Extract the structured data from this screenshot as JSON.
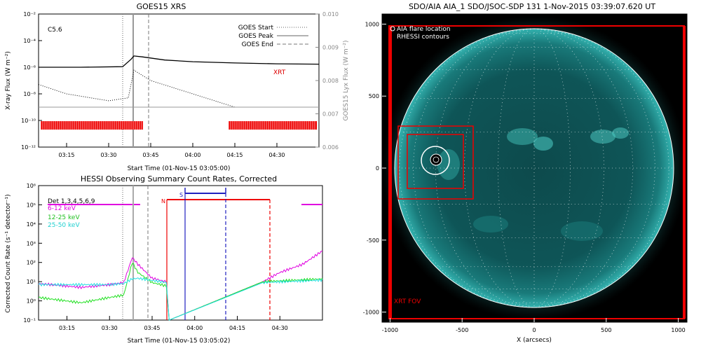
{
  "goes": {
    "title": "GOES15 XRS",
    "ylabel": "X-ray Flux (W m⁻²)",
    "ylabel_right": "GOES15 Lyx Flux (W m⁻²)",
    "xlabel": "Start Time (01-Nov-15 03:05:00)",
    "class_label": "C5.6",
    "instrument_label": "XRT",
    "legend": [
      "GOES Start",
      "GOES Peak",
      "GOES End"
    ],
    "yticks": [
      "10⁻²",
      "10⁻⁴",
      "10⁻⁶",
      "10⁻⁸",
      "10⁻¹⁰",
      "10⁻¹²"
    ],
    "yticks_right": [
      "0.010",
      "0.009",
      "0.008",
      "0.007",
      "0.006"
    ],
    "xticks": [
      "03:15",
      "03:30",
      "03:45",
      "04:00",
      "04:15",
      "04:30"
    ]
  },
  "hessi": {
    "title": "HESSI Observing Summary Count Rates, Corrected",
    "ylabel": "Corrected Count Rate (s⁻¹ detector⁻¹)",
    "xlabel": "Start Time (01-Nov-15 03:05:02)",
    "legend": [
      {
        "label": "Det 1,3,4,5,6,9",
        "color": "#000000"
      },
      {
        "label": "6-12 keV",
        "color": "#e000e0"
      },
      {
        "label": "12-25 keV",
        "color": "#20e020"
      },
      {
        "label": "25-50 keV",
        "color": "#20e0e0"
      }
    ],
    "flag_N": "N",
    "flag_S": "S",
    "yticks": [
      "10⁶",
      "10⁵",
      "10⁴",
      "10³",
      "10²",
      "10¹",
      "10⁰",
      "10⁻¹"
    ],
    "xticks": [
      "03:15",
      "03:30",
      "03:45",
      "04:00",
      "04:15",
      "04:30"
    ]
  },
  "aia": {
    "title": "SDO/AIA AIA_1 SDO/JSOC-SDP 131  1-Nov-2015 03:39:07.620 UT",
    "legend": [
      "AIA flare location",
      "RHESSI contours"
    ],
    "fov_label": "XRT FOV",
    "xlabel": "X (arcsecs)",
    "xticks": [
      "-1000",
      "-500",
      "0",
      "500",
      "1000"
    ],
    "yticks": [
      "1000",
      "500",
      "0",
      "-500",
      "-1000"
    ]
  },
  "chart_data": [
    {
      "type": "line",
      "title": "GOES15 XRS",
      "xlabel": "Start Time (01-Nov-15 03:05:00)",
      "ylabel": "X-ray Flux (W m⁻²)",
      "yscale": "log",
      "ylim": [
        1e-12,
        0.01
      ],
      "xlim": [
        "03:05",
        "04:45"
      ],
      "series": [
        {
          "x": [
            "03:05",
            "03:20",
            "03:35",
            "03:38",
            "03:39",
            "03:42",
            "03:50",
            "04:00",
            "04:15",
            "04:30",
            "04:45"
          ],
          "values": [
            1e-06,
            1e-06,
            1.1e-06,
            4e-06,
            7e-06,
            6e-06,
            3.5e-06,
            2.6e-06,
            2.1e-06,
            1.8e-06,
            1.7e-06
          ]
        },
        {
          "x": [
            "03:05",
            "03:15",
            "03:30",
            "03:37",
            "03:39",
            "03:45",
            "04:00",
            "04:15",
            "04:30",
            "04:45"
          ],
          "values": [
            5e-08,
            1e-08,
            3e-09,
            5e-09,
            6e-07,
            1e-07,
            1e-08,
            1e-09,
            1e-09,
            1e-09
          ]
        },
        {
          "x": [
            "03:05",
            "04:45"
          ],
          "values": [
            1e-09,
            1e-09
          ]
        }
      ],
      "markers": {
        "GOES Start": "03:35",
        "GOES Peak": "03:39",
        "GOES End": "03:44"
      },
      "grid": false
    },
    {
      "type": "line",
      "title": "HESSI Observing Summary Count Rates, Corrected",
      "xlabel": "Start Time (01-Nov-15 03:05:02)",
      "ylabel": "Corrected Count Rate (s⁻¹ detector⁻¹)",
      "yscale": "log",
      "ylim": [
        0.1,
        1000000.0
      ],
      "xlim": [
        "03:05",
        "04:45"
      ],
      "series": [
        {
          "name": "6-12 keV",
          "x": [
            "03:05",
            "03:20",
            "03:30",
            "03:35",
            "03:38",
            "03:40",
            "03:45",
            "03:50",
            "03:51",
            "04:24",
            "04:30",
            "04:38",
            "04:45"
          ],
          "values": [
            8,
            5,
            7,
            9,
            180,
            80,
            15,
            10,
            0.1,
            10,
            30,
            80,
            400
          ]
        },
        {
          "name": "12-25 keV",
          "x": [
            "03:05",
            "03:20",
            "03:30",
            "03:35",
            "03:38",
            "03:40",
            "03:45",
            "03:50",
            "03:51",
            "04:24",
            "04:45"
          ],
          "values": [
            1.5,
            0.8,
            1.5,
            2,
            100,
            30,
            9,
            6,
            0.1,
            10,
            14
          ]
        },
        {
          "name": "25-50 keV",
          "x": [
            "03:05",
            "03:30",
            "03:35",
            "03:38",
            "03:40",
            "03:50",
            "03:51",
            "04:24",
            "04:45"
          ],
          "values": [
            7,
            7,
            8,
            14,
            15,
            9,
            0.1,
            9,
            12
          ]
        }
      ],
      "grid": false
    },
    {
      "type": "heatmap",
      "title": "SDO/AIA AIA_1 SDO/JSOC-SDP 131  1-Nov-2015 03:39:07.620 UT",
      "xlabel": "X (arcsecs)",
      "xlim": [
        -1100,
        1100
      ],
      "ylim": [
        -1100,
        1100
      ],
      "solar_radius_arcsec": 968,
      "flare_location": [
        -690,
        40
      ],
      "fov_boxes": [
        [
          -950,
          -1100,
          1050,
          1000
        ],
        [
          -940,
          -230,
          -400,
          300
        ],
        [
          -880,
          -150,
          -480,
          230
        ]
      ]
    }
  ]
}
